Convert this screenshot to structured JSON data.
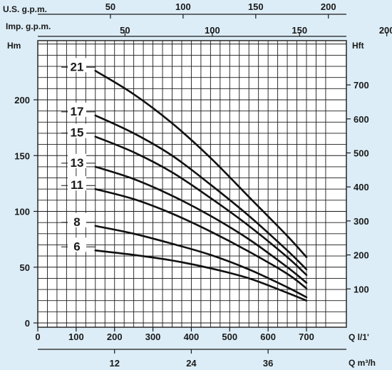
{
  "chart_data": {
    "type": "line",
    "axes": {
      "x_bottom_flow_lpm": {
        "label": "Q l/1'",
        "ticks": [
          0,
          100,
          200,
          300,
          400,
          500,
          600,
          700
        ],
        "range": [
          0,
          750
        ]
      },
      "x_bottom_flow_m3h": {
        "label": "Q m³/h",
        "ticks": [
          12,
          24,
          36
        ],
        "range": [
          0,
          45
        ]
      },
      "x_top_us_gpm": {
        "label": "U.S. g.p.m.",
        "ticks": [
          50,
          100,
          150,
          200
        ],
        "range": [
          0,
          198.1
        ]
      },
      "x_top_imp_gpm": {
        "label": "Imp. g.p.m.",
        "ticks": [
          50,
          100,
          150,
          200
        ],
        "range": [
          0,
          165
        ]
      },
      "y_left_head_m": {
        "label": "Hm",
        "ticks": [
          0,
          50,
          100,
          150,
          200
        ],
        "range": [
          0,
          250
        ]
      },
      "y_right_head_ft": {
        "label": "Hft",
        "ticks": [
          100,
          200,
          300,
          400,
          500,
          600,
          700
        ],
        "range": [
          0,
          820
        ]
      }
    },
    "grid": true,
    "series": [
      {
        "name": "21",
        "x": [
          150,
          250,
          350,
          450,
          550,
          650,
          700
        ],
        "y": [
          226,
          205,
          179,
          148,
          113,
          78,
          59
        ]
      },
      {
        "name": "17",
        "x": [
          150,
          250,
          350,
          450,
          550,
          650,
          700
        ],
        "y": [
          186,
          170,
          150,
          124,
          96,
          65,
          48
        ]
      },
      {
        "name": "15",
        "x": [
          150,
          250,
          350,
          450,
          550,
          650,
          700
        ],
        "y": [
          167,
          153,
          135,
          112,
          87,
          59,
          43
        ]
      },
      {
        "name": "13",
        "x": [
          150,
          250,
          350,
          450,
          550,
          650,
          700
        ],
        "y": [
          140,
          129,
          114,
          96,
          75,
          50,
          36
        ]
      },
      {
        "name": "11",
        "x": [
          150,
          250,
          350,
          450,
          550,
          650,
          700
        ],
        "y": [
          120,
          111,
          98,
          82,
          64,
          44,
          31
        ]
      },
      {
        "name": "8",
        "x": [
          150,
          250,
          350,
          450,
          550,
          650,
          700
        ],
        "y": [
          87,
          80,
          71,
          61,
          48,
          32,
          23
        ]
      },
      {
        "name": "6",
        "x": [
          150,
          250,
          350,
          450,
          550,
          650,
          700
        ],
        "y": [
          65,
          61,
          56,
          49,
          40,
          27,
          20
        ]
      }
    ]
  }
}
